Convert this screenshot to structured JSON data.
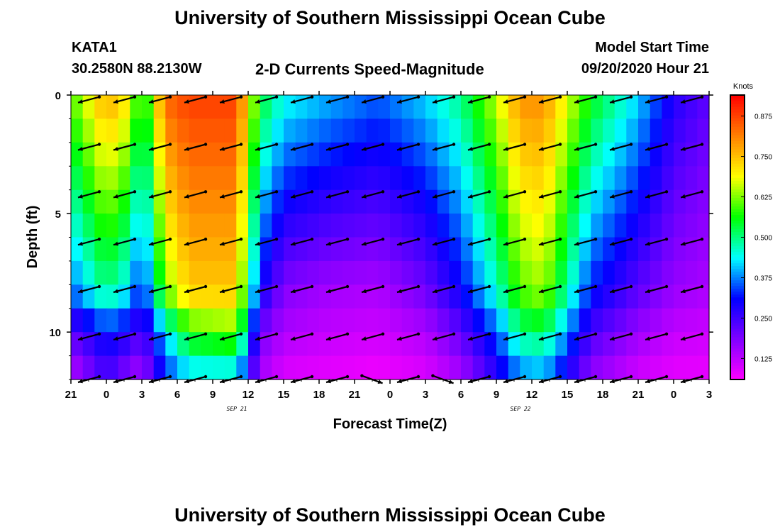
{
  "page": {
    "title_top": "University of Southern Mississippi Ocean Cube",
    "title_bottom": "University of Southern Mississippi Ocean Cube",
    "station_id": "KATA1",
    "station_coords": "30.2580N 88.2130W",
    "center_title": "2-D Currents Speed-Magnitude",
    "model_label": "Model Start Time",
    "model_time": "09/20/2020 Hour 21"
  },
  "chart_data": {
    "type": "heatmap",
    "title": "2-D Currents Speed-Magnitude",
    "xlabel": "Forecast Time(Z)",
    "ylabel": "Depth (ft)",
    "x_ticks": [
      "21",
      "0",
      "3",
      "6",
      "9",
      "12",
      "15",
      "18",
      "21",
      "0",
      "3",
      "6",
      "9",
      "12",
      "15",
      "18",
      "21",
      "0",
      "3"
    ],
    "x_tick_hours": [
      0,
      3,
      6,
      9,
      12,
      15,
      18,
      21,
      24,
      27,
      30,
      33,
      36,
      39,
      42,
      45,
      48,
      51,
      54
    ],
    "date_labels": [
      {
        "text": "SEP 21",
        "hour": 15
      },
      {
        "text": "SEP 22",
        "hour": 39
      }
    ],
    "x_range_hours": [
      0,
      54
    ],
    "y_ticks": [
      "0",
      "5",
      "10"
    ],
    "y_tick_values": [
      0,
      5,
      10
    ],
    "y_range_ft": [
      0,
      12
    ],
    "colorbar": {
      "label": "Knots",
      "ticks": [
        "0.125",
        "0.250",
        "0.375",
        "0.500",
        "0.625",
        "0.750",
        "0.875"
      ],
      "tick_values": [
        0.125,
        0.25,
        0.375,
        0.5,
        0.625,
        0.75,
        0.875
      ],
      "range": [
        0.06,
        0.94
      ],
      "stops": [
        "#ff00ff",
        "#8000ff",
        "#0000ff",
        "#00ffff",
        "#00ff00",
        "#ffff00",
        "#ff8000",
        "#ff0000"
      ]
    },
    "speed_at_depth_vs_hour": {
      "depth_levels_ft": [
        0,
        8.3,
        10,
        12
      ],
      "hour_nodes": [
        0,
        3,
        5,
        6,
        8,
        10,
        14,
        16,
        18,
        22,
        26,
        30,
        33,
        36,
        38,
        40,
        44,
        48,
        51,
        54
      ],
      "surface_0ft": [
        0.6,
        0.78,
        0.7,
        0.52,
        0.84,
        0.88,
        0.88,
        0.55,
        0.45,
        0.4,
        0.36,
        0.42,
        0.5,
        0.66,
        0.8,
        0.8,
        0.56,
        0.42,
        0.28,
        0.22
      ],
      "depth_8ft": [
        0.36,
        0.5,
        0.42,
        0.3,
        0.62,
        0.74,
        0.74,
        0.3,
        0.18,
        0.15,
        0.14,
        0.2,
        0.3,
        0.46,
        0.6,
        0.64,
        0.32,
        0.22,
        0.16,
        0.14
      ],
      "depth_10ft": [
        0.22,
        0.32,
        0.28,
        0.22,
        0.42,
        0.58,
        0.62,
        0.2,
        0.14,
        0.12,
        0.11,
        0.14,
        0.22,
        0.35,
        0.5,
        0.52,
        0.24,
        0.16,
        0.12,
        0.11
      ],
      "depth_12ft": [
        0.12,
        0.24,
        0.16,
        0.14,
        0.32,
        0.4,
        0.4,
        0.14,
        0.09,
        0.08,
        0.07,
        0.09,
        0.14,
        0.26,
        0.36,
        0.38,
        0.16,
        0.1,
        0.08,
        0.08
      ]
    },
    "vectors": {
      "depths_ft": [
        0.2,
        2.2,
        4.2,
        6.2,
        8.2,
        10.2,
        12.0
      ],
      "hours": [
        1.5,
        4.5,
        7.5,
        10.5,
        13.5,
        16.5,
        19.5,
        22.5,
        25.5,
        28.5,
        31.5,
        34.5,
        37.5,
        40.5,
        43.5,
        46.5,
        49.5,
        52.5
      ],
      "direction_deg": 195,
      "note": "arrows mostly point west-southwest; bottom row points east-southeast around hours 25 and 31"
    }
  }
}
